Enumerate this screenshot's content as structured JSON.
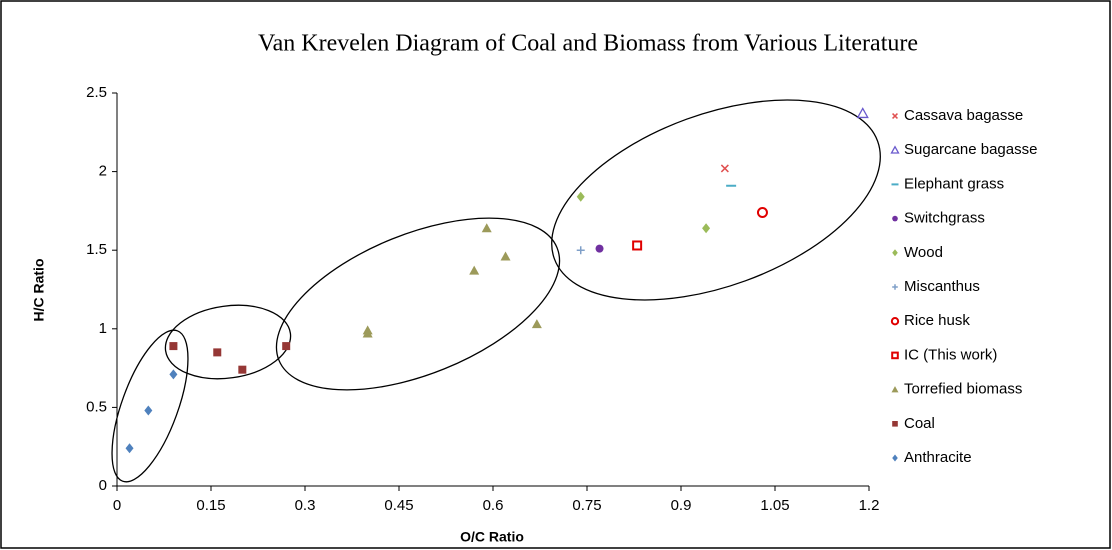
{
  "chart_data": {
    "type": "scatter",
    "title": "Van Krevelen Diagram of Coal and Biomass from Various Literature",
    "x_label": "O/C Ratio",
    "y_label": "H/C Ratio",
    "xlim": [
      0,
      1.2
    ],
    "xticks": [
      0,
      0.15,
      0.3,
      0.45,
      0.6,
      0.75,
      0.9,
      1.05,
      1.2
    ],
    "ylim": [
      0,
      2.5
    ],
    "yticks": [
      0,
      0.5,
      1,
      1.5,
      2,
      2.5
    ],
    "grid": false,
    "legend": "right",
    "series": [
      {
        "name": "Cassava bagasse",
        "color": "#e05050",
        "marker": "x",
        "x": [
          0.97
        ],
        "values": [
          2.02
        ]
      },
      {
        "name": "Sugarcane bagasse",
        "color": "#6a5acd",
        "marker": "triangle-open",
        "x": [
          1.19
        ],
        "values": [
          2.37
        ]
      },
      {
        "name": "Elephant grass",
        "color": "#4bacc6",
        "marker": "dash",
        "x": [
          0.98
        ],
        "values": [
          1.91
        ]
      },
      {
        "name": "Switchgrass",
        "color": "#7030a0",
        "marker": "circle",
        "x": [
          0.77
        ],
        "values": [
          1.51
        ]
      },
      {
        "name": "Wood",
        "color": "#9bbb59",
        "marker": "diamond",
        "x": [
          0.74,
          0.94
        ],
        "values": [
          1.84,
          1.64
        ]
      },
      {
        "name": "Miscanthus",
        "color": "#7f9fc8",
        "marker": "plus",
        "x": [
          0.74
        ],
        "values": [
          1.5
        ]
      },
      {
        "name": "Rice husk",
        "color": "#e00000",
        "marker": "circle-open",
        "x": [
          1.03
        ],
        "values": [
          1.74
        ]
      },
      {
        "name": "IC (This work)",
        "color": "#e00000",
        "marker": "square-open",
        "x": [
          0.83
        ],
        "values": [
          1.53
        ]
      },
      {
        "name": "Torrefied biomass",
        "color": "#9c9a5a",
        "marker": "triangle",
        "x": [
          0.59,
          0.57,
          0.62,
          0.67,
          0.4,
          0.4
        ],
        "values": [
          1.64,
          1.37,
          1.46,
          1.03,
          0.99,
          0.97
        ]
      },
      {
        "name": "Coal",
        "color": "#953735",
        "marker": "square",
        "x": [
          0.09,
          0.16,
          0.2,
          0.27
        ],
        "values": [
          0.89,
          0.85,
          0.74,
          0.89
        ]
      },
      {
        "name": "Anthracite",
        "color": "#4f81bd",
        "marker": "diamond",
        "x": [
          0.02,
          0.05,
          0.09
        ],
        "values": [
          0.24,
          0.48,
          0.71
        ]
      }
    ]
  }
}
